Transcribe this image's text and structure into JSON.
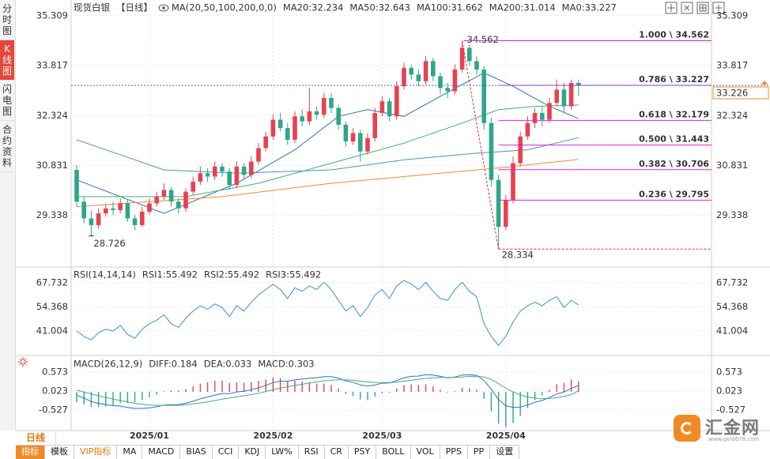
{
  "sidebar": {
    "tabs": [
      "分时图",
      "K线图",
      "闪电图",
      "合约资料"
    ]
  },
  "chart_data": [
    {
      "type": "candlestick",
      "title": "现货白银",
      "subtitle": "【日线】",
      "indicator": "MA(20,50,100,200,0,0)",
      "open": [
        30.7,
        29.75,
        29.25,
        29.05,
        29.4,
        29.55,
        29.5,
        29.7,
        29.25,
        29.05,
        29.45,
        29.7,
        29.9,
        30.1,
        29.75,
        29.55,
        30.05,
        30.35,
        30.6,
        30.5,
        30.8,
        30.65,
        30.25,
        30.8,
        30.55,
        30.95,
        31.35,
        31.7,
        32.2,
        31.95,
        31.6,
        32.3,
        32.15,
        32.45,
        32.35,
        32.85,
        32.55,
        32.05,
        31.55,
        31.8,
        31.25,
        31.65,
        32.4,
        32.75,
        32.3,
        33.2,
        33.75,
        33.55,
        33.35,
        33.95,
        33.5,
        33.15,
        33.05,
        33.7,
        34.35,
        33.95,
        33.7,
        32.1,
        30.4,
        29.0,
        29.8,
        30.9,
        31.7,
        32.1,
        32.4,
        32.2,
        32.7,
        33.1,
        32.6,
        33.3
      ],
      "high": [
        30.85,
        29.9,
        29.5,
        29.55,
        29.7,
        29.75,
        29.85,
        29.8,
        29.35,
        29.6,
        29.85,
        30.05,
        30.3,
        30.2,
        29.85,
        30.15,
        30.5,
        30.8,
        30.75,
        30.95,
        30.9,
        30.75,
        30.95,
        30.9,
        31.1,
        31.5,
        31.85,
        32.35,
        32.4,
        32.1,
        32.45,
        32.5,
        33.15,
        32.6,
        33.0,
        33.0,
        32.65,
        32.15,
        31.95,
        31.9,
        31.8,
        32.55,
        32.9,
        32.85,
        33.35,
        33.9,
        33.85,
        33.7,
        34.1,
        34.05,
        33.6,
        33.3,
        33.85,
        34.562,
        34.45,
        34.1,
        33.8,
        32.25,
        30.55,
        29.95,
        31.1,
        31.85,
        32.3,
        32.55,
        32.6,
        32.85,
        33.4,
        33.3,
        33.4,
        33.4
      ],
      "low": [
        29.6,
        29.1,
        28.726,
        28.95,
        29.3,
        29.35,
        29.4,
        29.15,
        28.9,
        29.0,
        29.35,
        29.6,
        29.8,
        29.6,
        29.4,
        29.45,
        29.95,
        30.25,
        30.35,
        30.4,
        30.5,
        30.1,
        30.15,
        30.4,
        30.45,
        30.85,
        31.25,
        31.6,
        31.85,
        31.45,
        31.5,
        32.0,
        32.05,
        32.2,
        32.25,
        32.4,
        31.9,
        31.4,
        31.45,
        30.95,
        31.15,
        31.55,
        32.3,
        32.15,
        32.2,
        33.1,
        33.4,
        33.2,
        33.25,
        33.35,
        32.95,
        32.85,
        32.95,
        33.6,
        33.8,
        33.55,
        31.9,
        30.2,
        28.334,
        28.9,
        29.7,
        30.8,
        31.6,
        31.95,
        32.0,
        32.1,
        32.6,
        32.4,
        32.5,
        32.9
      ],
      "close": [
        29.75,
        29.25,
        29.05,
        29.4,
        29.55,
        29.5,
        29.7,
        29.25,
        29.05,
        29.45,
        29.7,
        29.9,
        30.1,
        29.75,
        29.55,
        30.05,
        30.35,
        30.6,
        30.5,
        30.8,
        30.65,
        30.25,
        30.8,
        30.55,
        30.95,
        31.35,
        31.7,
        32.2,
        31.95,
        31.6,
        32.3,
        32.15,
        32.45,
        32.35,
        32.85,
        32.55,
        32.05,
        31.55,
        31.8,
        31.25,
        31.65,
        32.4,
        32.75,
        32.3,
        33.2,
        33.75,
        33.55,
        33.35,
        33.95,
        33.5,
        33.15,
        33.05,
        33.7,
        34.35,
        33.95,
        33.7,
        32.1,
        30.4,
        29.0,
        29.8,
        30.9,
        31.7,
        32.1,
        32.4,
        32.2,
        32.7,
        33.1,
        32.6,
        33.3,
        33.226
      ],
      "up_color": "#e8414f",
      "down_color": "#2fa58a",
      "xticks": [
        {
          "value": 10,
          "label": "2025/01"
        },
        {
          "value": 27,
          "label": "2025/02"
        },
        {
          "value": 42,
          "label": "2025/03"
        },
        {
          "value": 59,
          "label": "2025/04"
        }
      ],
      "ylim": [
        27.82,
        35.66
      ],
      "yticks": [
        35.309,
        33.817,
        32.324,
        30.831,
        29.338
      ],
      "grid": true,
      "series": [
        {
          "name": "MA20:32.234",
          "color": "#2f6fc8",
          "x": [
            0,
            12,
            22,
            30,
            36,
            40,
            45,
            50,
            56,
            60,
            65,
            69
          ],
          "values": [
            30.4,
            29.4,
            30.3,
            31.3,
            32.3,
            32.5,
            32.3,
            32.9,
            33.6,
            33.2,
            32.6,
            32.234
          ]
        },
        {
          "name": "MA50:32.643",
          "color": "#3cb371",
          "x": [
            0,
            15,
            25,
            35,
            45,
            53,
            58,
            63,
            69
          ],
          "values": [
            29.9,
            29.9,
            30.3,
            30.9,
            31.5,
            32.1,
            32.5,
            32.6,
            32.643
          ]
        },
        {
          "name": "MA100:31.662",
          "color": "#4a90c8",
          "x": [
            0,
            12,
            22,
            35,
            45,
            55,
            62,
            69
          ],
          "values": [
            31.6,
            30.7,
            30.6,
            30.7,
            31.0,
            31.2,
            31.3,
            31.662
          ]
        },
        {
          "name": "MA200:31.014",
          "color": "#ee8a2c",
          "x": [
            0,
            20,
            35,
            50,
            60,
            69
          ],
          "values": [
            29.6,
            29.9,
            30.3,
            30.6,
            30.8,
            31.014
          ]
        },
        {
          "name": "MA0:33.227",
          "color": "#e38ae3"
        }
      ],
      "fib_levels": [
        {
          "value": 34.562,
          "label": "1.000 \\ 34.562"
        },
        {
          "value": 33.227,
          "label": "0.786 \\ 33.227"
        },
        {
          "value": 32.179,
          "label": "0.618 \\ 32.179"
        },
        {
          "value": 31.443,
          "label": "0.500 \\ 31.443"
        },
        {
          "value": 30.706,
          "label": "0.382 \\ 30.706"
        },
        {
          "value": 29.795,
          "label": "0.236 \\ 29.795"
        }
      ],
      "fib_color": "#e020d8",
      "swing_color": "#e03030",
      "price_line_color": "#3a6fd0",
      "last_price_color": "#f08c1e"
    },
    {
      "type": "line",
      "title": "RSI(14,14,14)",
      "ylim": [
        28.7,
        75.6
      ],
      "yticks": [
        67.732,
        54.368,
        41.004
      ],
      "series": [
        {
          "name": "RSI1:55.492",
          "color": "#3a8fd8",
          "values": [
            41,
            38,
            36,
            40,
            42,
            41,
            44,
            39,
            37,
            42,
            45,
            47,
            50,
            45,
            43,
            48,
            52,
            55,
            53,
            56,
            54,
            49,
            55,
            52,
            57,
            61,
            64,
            67,
            64,
            59,
            65,
            63,
            66,
            64,
            68,
            64,
            58,
            52,
            55,
            49,
            54,
            61,
            64,
            59,
            66,
            69,
            67,
            64,
            68,
            63,
            59,
            58,
            64,
            68,
            63,
            60,
            45,
            38,
            33,
            38,
            46,
            52,
            55,
            57,
            55,
            58,
            60,
            54,
            58,
            55.492
          ]
        },
        {
          "name": "RSI2:55.492",
          "color": "#5aaee8"
        },
        {
          "name": "RSI3:55.492",
          "color": "#8a9ae0"
        }
      ]
    },
    {
      "type": "macd",
      "title": "MACD(26,12,9)",
      "ylim": [
        -1.12,
        0.94
      ],
      "yticks": [
        0.573,
        0.023,
        -0.527
      ],
      "series": [
        {
          "name": "DIFF:0.184",
          "color": "#2c6fc9",
          "values": [
            -0.1,
            -0.18,
            -0.28,
            -0.33,
            -0.37,
            -0.4,
            -0.41,
            -0.45,
            -0.48,
            -0.48,
            -0.46,
            -0.43,
            -0.38,
            -0.37,
            -0.37,
            -0.33,
            -0.27,
            -0.2,
            -0.15,
            -0.09,
            -0.05,
            -0.05,
            0.0,
            0.02,
            0.06,
            0.12,
            0.19,
            0.27,
            0.31,
            0.31,
            0.35,
            0.37,
            0.4,
            0.41,
            0.44,
            0.44,
            0.4,
            0.32,
            0.28,
            0.2,
            0.17,
            0.2,
            0.25,
            0.26,
            0.33,
            0.41,
            0.45,
            0.46,
            0.5,
            0.49,
            0.45,
            0.41,
            0.43,
            0.49,
            0.5,
            0.48,
            0.33,
            0.08,
            -0.22,
            -0.4,
            -0.45,
            -0.44,
            -0.38,
            -0.3,
            -0.25,
            -0.16,
            -0.06,
            0.0,
            0.1,
            0.184
          ]
        },
        {
          "name": "DEA:0.033",
          "color": "#3cb080",
          "values": [
            0.05,
            0.0,
            -0.06,
            -0.11,
            -0.16,
            -0.21,
            -0.25,
            -0.29,
            -0.33,
            -0.36,
            -0.38,
            -0.39,
            -0.39,
            -0.39,
            -0.39,
            -0.37,
            -0.35,
            -0.32,
            -0.29,
            -0.25,
            -0.21,
            -0.18,
            -0.14,
            -0.11,
            -0.08,
            -0.04,
            0.01,
            0.06,
            0.11,
            0.15,
            0.19,
            0.22,
            0.26,
            0.29,
            0.32,
            0.34,
            0.35,
            0.35,
            0.34,
            0.31,
            0.29,
            0.27,
            0.27,
            0.27,
            0.28,
            0.31,
            0.34,
            0.36,
            0.39,
            0.41,
            0.42,
            0.42,
            0.42,
            0.43,
            0.45,
            0.45,
            0.43,
            0.36,
            0.24,
            0.11,
            0.0,
            -0.09,
            -0.15,
            -0.18,
            -0.2,
            -0.19,
            -0.17,
            -0.13,
            -0.08,
            0.033
          ]
        }
      ],
      "histogram": {
        "name": "MACD:0.303",
        "color": "#4aa0e0",
        "values": [
          -0.3,
          -0.36,
          -0.44,
          -0.44,
          -0.42,
          -0.38,
          -0.32,
          -0.32,
          -0.3,
          -0.24,
          -0.16,
          -0.08,
          0.02,
          0.04,
          0.04,
          0.08,
          0.16,
          0.24,
          0.28,
          0.32,
          0.32,
          0.26,
          0.28,
          0.26,
          0.28,
          0.32,
          0.36,
          0.42,
          0.4,
          0.32,
          0.32,
          0.3,
          0.28,
          0.24,
          0.24,
          0.2,
          0.1,
          -0.06,
          -0.12,
          -0.22,
          -0.24,
          -0.14,
          -0.04,
          -0.02,
          0.1,
          0.2,
          0.22,
          0.2,
          0.22,
          0.16,
          0.06,
          -0.02,
          0.02,
          0.12,
          0.1,
          0.06,
          -0.2,
          -0.56,
          -0.92,
          -1.02,
          -0.9,
          -0.7,
          -0.46,
          -0.24,
          -0.1,
          0.06,
          0.22,
          0.26,
          0.36,
          0.303
        ]
      },
      "up_color": "#e8414f",
      "down_color": "#2fa58a"
    }
  ],
  "period_tab": "日线",
  "toolbar": [
    "指标",
    "模板",
    "VIP指标",
    "MA",
    "MACD",
    "BIAS",
    "CCI",
    "KDJ",
    "LW%",
    "RSI",
    "CR",
    "PSY",
    "BOLL",
    "VOL",
    "PPS",
    "PP",
    "设置"
  ],
  "brand": {
    "name": "汇金网",
    "url": "www.gold678.com"
  }
}
